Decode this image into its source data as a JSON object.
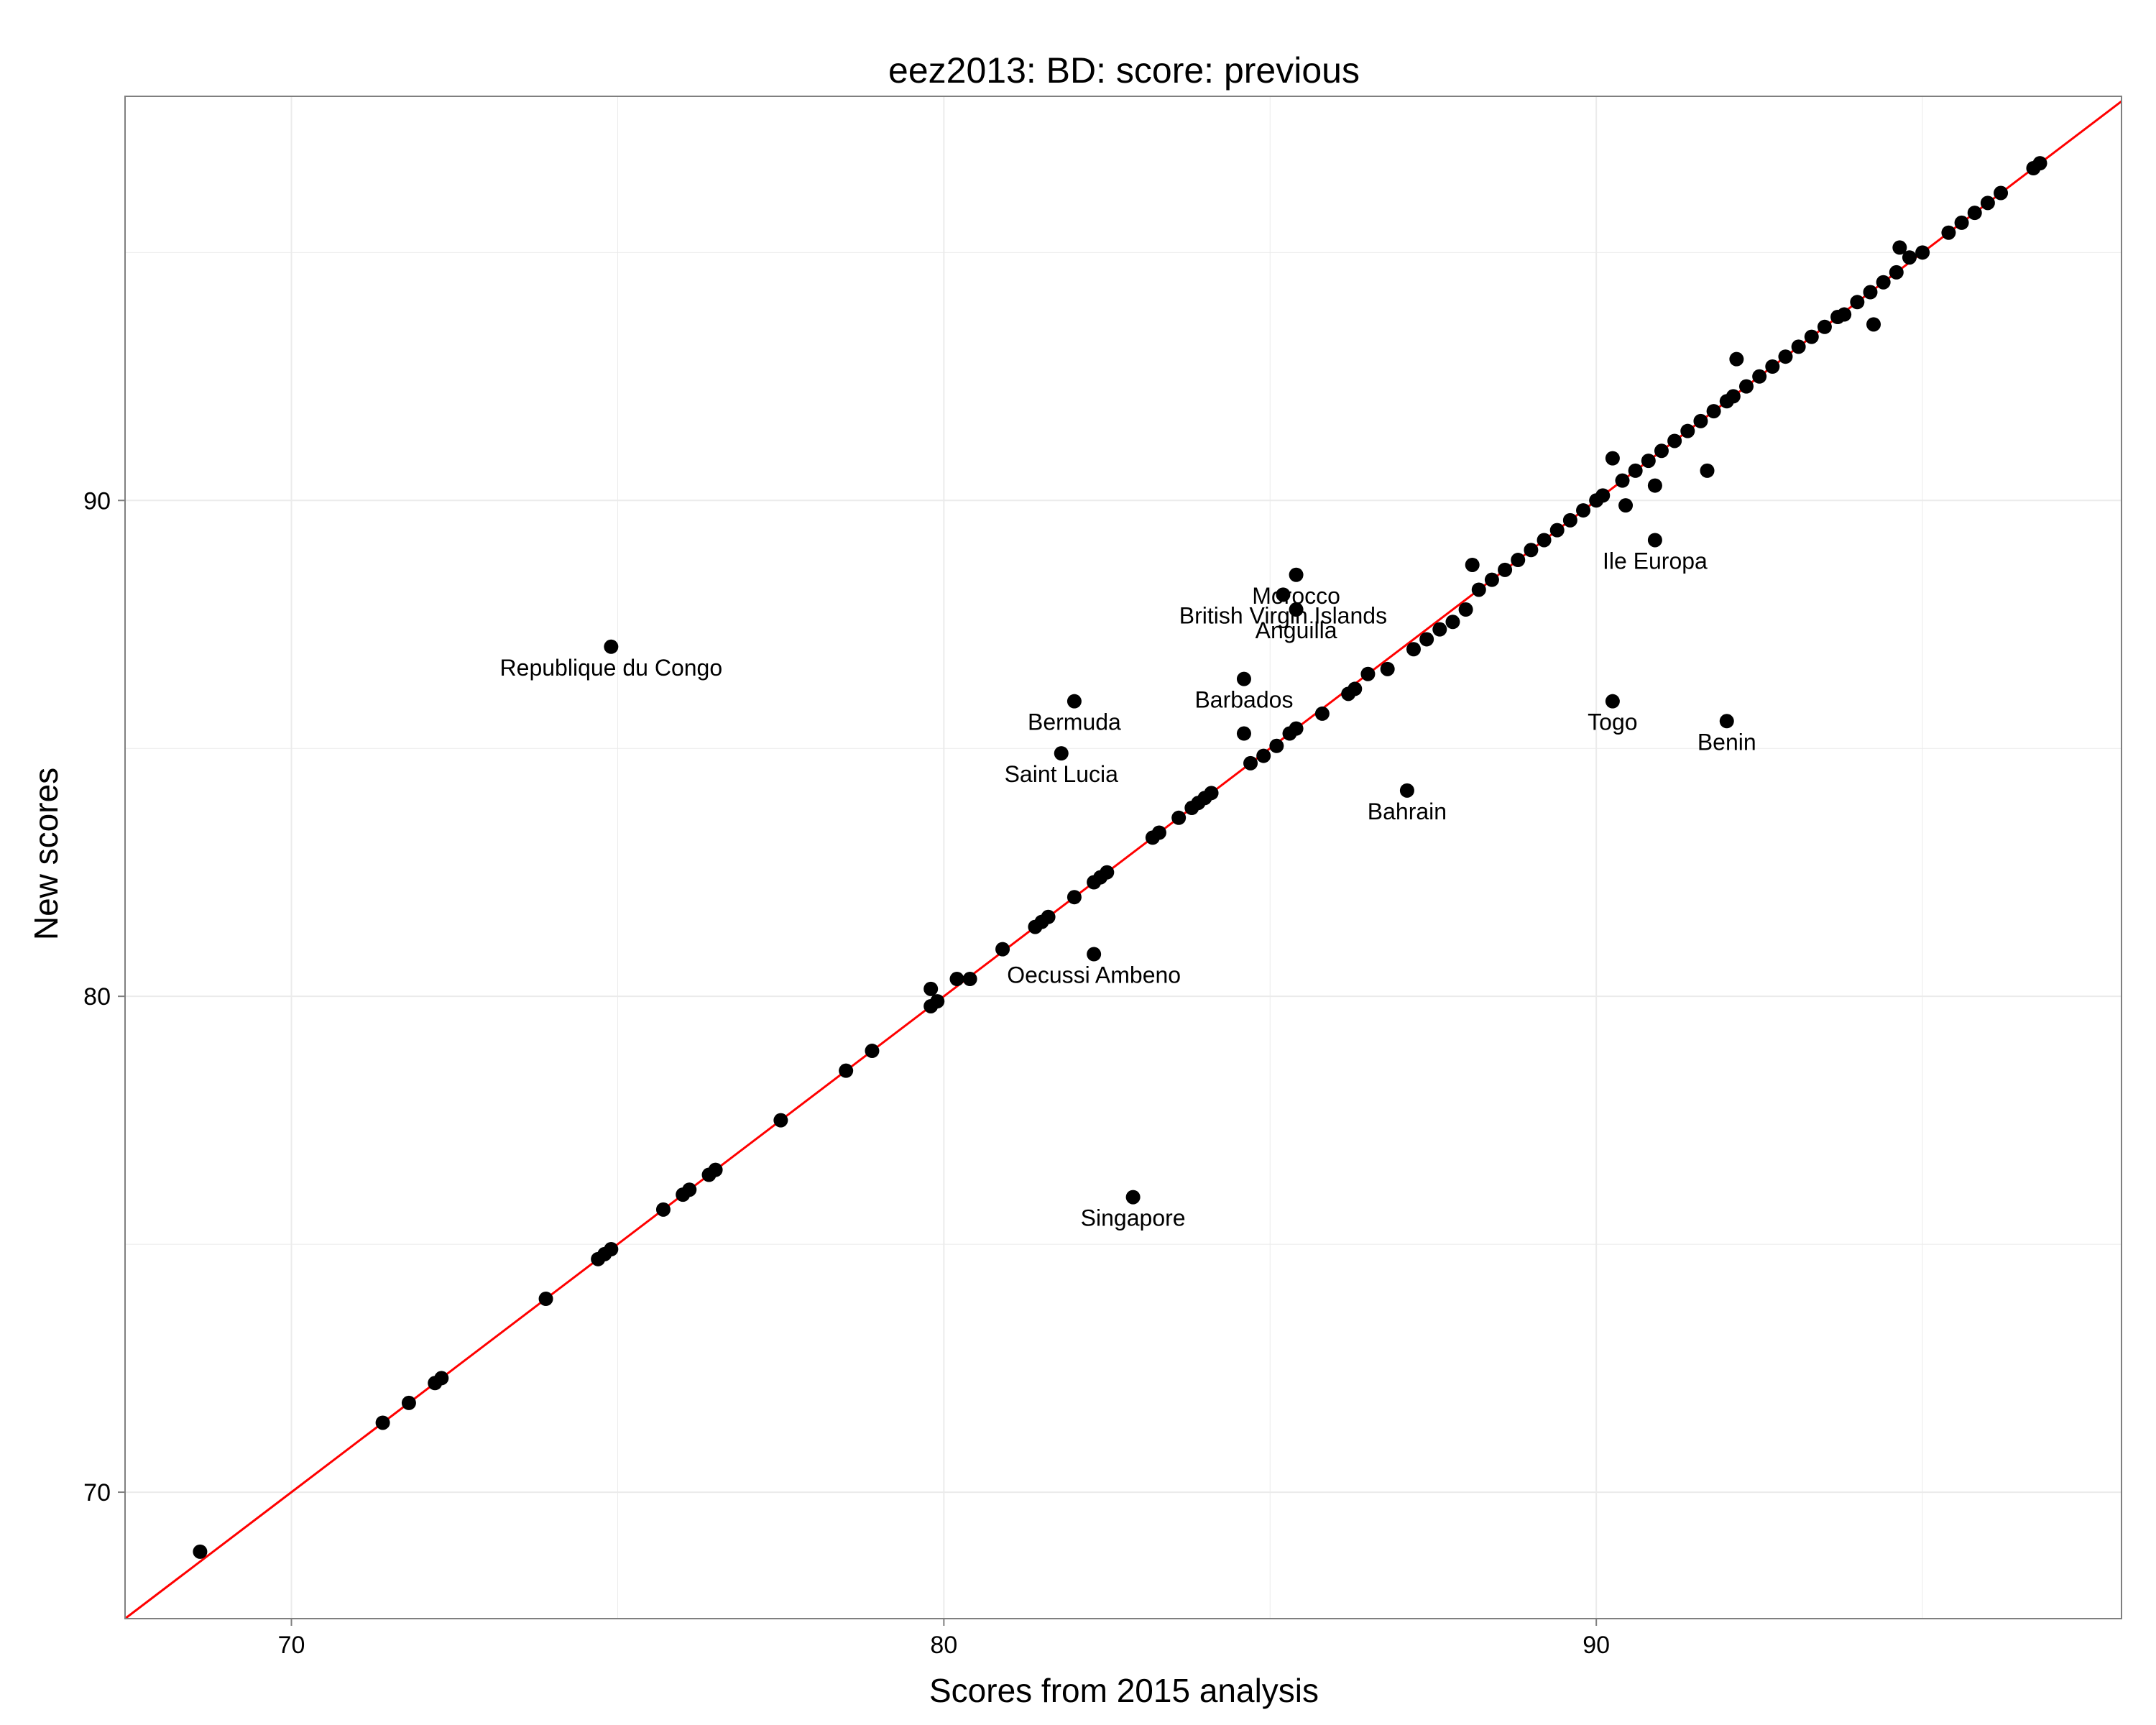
{
  "chart_data": {
    "type": "scatter",
    "title": "eez2013: BD: score: previous",
    "xlabel": "Scores from 2015 analysis",
    "ylabel": "New scores",
    "xlim": [
      67.45,
      98.05
    ],
    "ylim": [
      67.45,
      98.15
    ],
    "x_ticks": [
      70,
      80,
      90
    ],
    "y_ticks": [
      70,
      80,
      90
    ],
    "grid": true,
    "reference_line": {
      "slope": 1,
      "intercept": 0,
      "color": "#ff0000"
    },
    "point_color": "#000000",
    "labeled_points": [
      {
        "label": "Republique du Congo",
        "x": 74.9,
        "y": 87.05
      },
      {
        "label": "Bermuda",
        "x": 82.0,
        "y": 85.95
      },
      {
        "label": "Saint Lucia",
        "x": 81.8,
        "y": 84.9
      },
      {
        "label": "Barbados",
        "x": 84.6,
        "y": 86.4
      },
      {
        "label": "Morocco",
        "x": 85.4,
        "y": 88.5
      },
      {
        "label": "British Virgin Islands",
        "x": 85.2,
        "y": 88.1
      },
      {
        "label": "Anguilla",
        "x": 85.4,
        "y": 87.8
      },
      {
        "label": "Bahrain",
        "x": 87.1,
        "y": 84.15
      },
      {
        "label": "Oecussi Ambeno",
        "x": 82.3,
        "y": 80.85
      },
      {
        "label": "Singapore",
        "x": 82.9,
        "y": 75.95
      },
      {
        "label": "Ile Europa",
        "x": 90.9,
        "y": 89.2
      },
      {
        "label": "Togo",
        "x": 90.25,
        "y": 85.95
      },
      {
        "label": "Benin",
        "x": 92.0,
        "y": 85.55
      }
    ],
    "points": [
      {
        "x": 68.6,
        "y": 68.8
      },
      {
        "x": 71.4,
        "y": 71.4
      },
      {
        "x": 71.8,
        "y": 71.8
      },
      {
        "x": 72.2,
        "y": 72.2
      },
      {
        "x": 72.3,
        "y": 72.3
      },
      {
        "x": 73.9,
        "y": 73.9
      },
      {
        "x": 74.7,
        "y": 74.7
      },
      {
        "x": 74.8,
        "y": 74.8
      },
      {
        "x": 74.9,
        "y": 74.9
      },
      {
        "x": 75.7,
        "y": 75.7
      },
      {
        "x": 76.0,
        "y": 76.0
      },
      {
        "x": 76.1,
        "y": 76.1
      },
      {
        "x": 76.4,
        "y": 76.4
      },
      {
        "x": 76.5,
        "y": 76.5
      },
      {
        "x": 77.5,
        "y": 77.5
      },
      {
        "x": 78.5,
        "y": 78.5
      },
      {
        "x": 78.9,
        "y": 78.9
      },
      {
        "x": 79.8,
        "y": 79.8
      },
      {
        "x": 79.9,
        "y": 79.9
      },
      {
        "x": 79.8,
        "y": 80.15
      },
      {
        "x": 80.2,
        "y": 80.35
      },
      {
        "x": 80.4,
        "y": 80.35
      },
      {
        "x": 80.9,
        "y": 80.95
      },
      {
        "x": 81.4,
        "y": 81.4
      },
      {
        "x": 81.5,
        "y": 81.5
      },
      {
        "x": 81.6,
        "y": 81.6
      },
      {
        "x": 82.0,
        "y": 82.0
      },
      {
        "x": 82.3,
        "y": 82.3
      },
      {
        "x": 82.4,
        "y": 82.4
      },
      {
        "x": 82.5,
        "y": 82.5
      },
      {
        "x": 83.2,
        "y": 83.2
      },
      {
        "x": 83.3,
        "y": 83.3
      },
      {
        "x": 83.6,
        "y": 83.6
      },
      {
        "x": 83.8,
        "y": 83.8
      },
      {
        "x": 83.9,
        "y": 83.9
      },
      {
        "x": 84.0,
        "y": 84.0
      },
      {
        "x": 84.1,
        "y": 84.1
      },
      {
        "x": 84.6,
        "y": 85.3
      },
      {
        "x": 84.7,
        "y": 84.7
      },
      {
        "x": 84.9,
        "y": 84.85
      },
      {
        "x": 85.1,
        "y": 85.05
      },
      {
        "x": 85.3,
        "y": 85.3
      },
      {
        "x": 85.4,
        "y": 85.4
      },
      {
        "x": 85.8,
        "y": 85.7
      },
      {
        "x": 86.2,
        "y": 86.1
      },
      {
        "x": 86.3,
        "y": 86.2
      },
      {
        "x": 86.5,
        "y": 86.5
      },
      {
        "x": 86.8,
        "y": 86.6
      },
      {
        "x": 87.2,
        "y": 87.0
      },
      {
        "x": 87.4,
        "y": 87.2
      },
      {
        "x": 87.6,
        "y": 87.4
      },
      {
        "x": 87.8,
        "y": 87.55
      },
      {
        "x": 88.0,
        "y": 87.8
      },
      {
        "x": 88.1,
        "y": 88.7
      },
      {
        "x": 88.2,
        "y": 88.2
      },
      {
        "x": 88.4,
        "y": 88.4
      },
      {
        "x": 88.6,
        "y": 88.6
      },
      {
        "x": 88.8,
        "y": 88.8
      },
      {
        "x": 89.0,
        "y": 89.0
      },
      {
        "x": 89.2,
        "y": 89.2
      },
      {
        "x": 89.4,
        "y": 89.4
      },
      {
        "x": 89.6,
        "y": 89.6
      },
      {
        "x": 89.8,
        "y": 89.8
      },
      {
        "x": 90.0,
        "y": 90.0
      },
      {
        "x": 90.1,
        "y": 90.1
      },
      {
        "x": 90.25,
        "y": 90.85
      },
      {
        "x": 90.4,
        "y": 90.4
      },
      {
        "x": 90.45,
        "y": 89.9
      },
      {
        "x": 90.6,
        "y": 90.6
      },
      {
        "x": 90.8,
        "y": 90.8
      },
      {
        "x": 90.9,
        "y": 90.3
      },
      {
        "x": 91.0,
        "y": 91.0
      },
      {
        "x": 91.2,
        "y": 91.2
      },
      {
        "x": 91.4,
        "y": 91.4
      },
      {
        "x": 91.6,
        "y": 91.6
      },
      {
        "x": 91.7,
        "y": 90.6
      },
      {
        "x": 91.8,
        "y": 91.8
      },
      {
        "x": 92.0,
        "y": 92.0
      },
      {
        "x": 92.1,
        "y": 92.1
      },
      {
        "x": 92.15,
        "y": 92.85
      },
      {
        "x": 92.3,
        "y": 92.3
      },
      {
        "x": 92.5,
        "y": 92.5
      },
      {
        "x": 92.7,
        "y": 92.7
      },
      {
        "x": 92.9,
        "y": 92.9
      },
      {
        "x": 93.1,
        "y": 93.1
      },
      {
        "x": 93.3,
        "y": 93.3
      },
      {
        "x": 93.5,
        "y": 93.5
      },
      {
        "x": 93.7,
        "y": 93.7
      },
      {
        "x": 93.8,
        "y": 93.75
      },
      {
        "x": 94.0,
        "y": 94.0
      },
      {
        "x": 94.2,
        "y": 94.2
      },
      {
        "x": 94.25,
        "y": 93.55
      },
      {
        "x": 94.4,
        "y": 94.4
      },
      {
        "x": 94.6,
        "y": 94.6
      },
      {
        "x": 94.65,
        "y": 95.1
      },
      {
        "x": 94.8,
        "y": 94.9
      },
      {
        "x": 95.0,
        "y": 95.0
      },
      {
        "x": 95.4,
        "y": 95.4
      },
      {
        "x": 95.6,
        "y": 95.6
      },
      {
        "x": 95.8,
        "y": 95.8
      },
      {
        "x": 96.0,
        "y": 96.0
      },
      {
        "x": 96.2,
        "y": 96.2
      },
      {
        "x": 96.7,
        "y": 96.7
      },
      {
        "x": 96.8,
        "y": 96.8
      }
    ]
  }
}
